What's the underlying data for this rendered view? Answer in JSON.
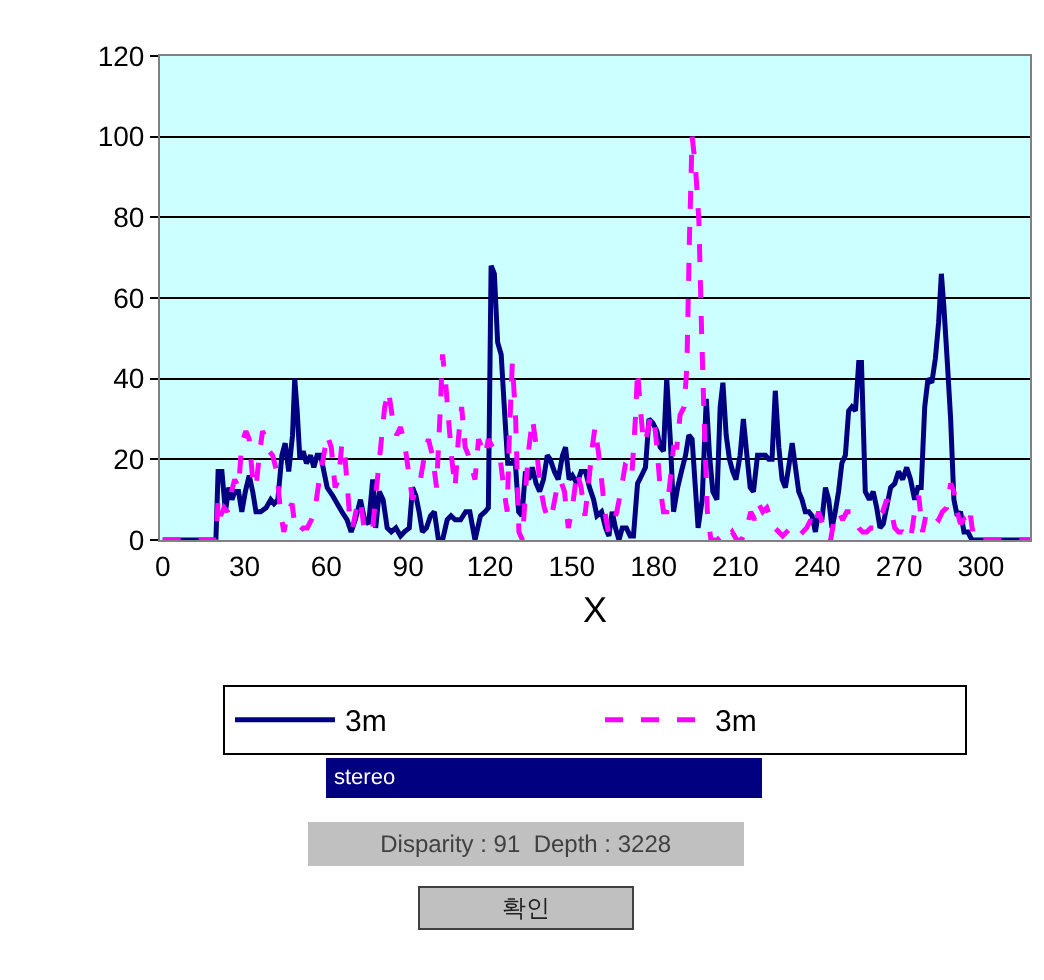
{
  "chart_data": {
    "type": "line",
    "xlabel": "X",
    "xlim": [
      -1,
      318
    ],
    "xticks": [
      0,
      30,
      60,
      90,
      120,
      150,
      180,
      210,
      240,
      270,
      300
    ],
    "ylim": [
      0,
      120
    ],
    "yticks": [
      0,
      20,
      40,
      60,
      80,
      100,
      120
    ],
    "grid": "y",
    "legend": "bottom",
    "marker": "none",
    "annotations": [
      "stereo",
      "Disparity : 91  Depth : 3228",
      "확인"
    ],
    "series": [
      {
        "name": "3m",
        "color": "#000080",
        "line_style": "solid",
        "x": [
          0,
          19.5,
          20.3,
          21.7,
          23,
          24.2,
          25.4,
          26.4,
          27.8,
          29,
          30.3,
          31.7,
          33,
          34.2,
          35.9,
          37.9,
          39.6,
          40.8,
          42.2,
          43.7,
          44.9,
          46.2,
          47.6,
          48.4,
          49.3,
          50.3,
          51.5,
          52.7,
          54.2,
          55.4,
          56.6,
          57.9,
          59.1,
          60.3,
          62.3,
          64,
          65.7,
          67.6,
          69.1,
          70.6,
          72.5,
          74,
          75.5,
          77,
          78.1,
          79.4,
          80.8,
          82.3,
          83.8,
          85.5,
          87.2,
          88.6,
          90.4,
          91.6,
          92.8,
          94,
          95.2,
          96.7,
          98.2,
          99.6,
          101.1,
          102.6,
          104.3,
          105.7,
          107.2,
          109.2,
          111.1,
          112.6,
          114.5,
          116.5,
          118.2,
          119.4,
          120.4,
          121.6,
          122.8,
          124.1,
          125.5,
          126.5,
          128,
          129.2,
          130.5,
          131.7,
          133,
          134.2,
          135.5,
          136.9,
          138.2,
          139.6,
          141,
          142.1,
          143.6,
          145,
          146.6,
          147.7,
          149,
          150.2,
          151.9,
          153.4,
          155,
          156.5,
          158,
          159.2,
          160.9,
          162.4,
          163.6,
          164.8,
          166,
          167.3,
          168.5,
          170,
          171.4,
          172.6,
          174.1,
          175.6,
          177,
          178.3,
          179.7,
          181.2,
          182.4,
          183.6,
          184.8,
          186.1,
          187.3,
          188.8,
          190.2,
          191.7,
          192.9,
          194.1,
          195.3,
          196.3,
          197.8,
          199.3,
          200.5,
          201.7,
          203.2,
          204.4,
          205.4,
          206.6,
          207.8,
          209,
          210.2,
          211.7,
          212.9,
          214.2,
          215.4,
          216.6,
          218.1,
          219.5,
          221,
          222.2,
          223.4,
          224.6,
          225.9,
          227.1,
          228.3,
          229.5,
          230.8,
          232,
          233.2,
          234.4,
          235.6,
          236.9,
          238.1,
          239.3,
          240.5,
          241.7,
          243,
          244.2,
          245.4,
          246.6,
          247.8,
          249,
          250.3,
          251.5,
          252.7,
          254,
          255.2,
          256.2,
          257.6,
          259.1,
          260.5,
          261.8,
          263,
          264.2,
          265.4,
          266.9,
          268.4,
          269.8,
          271.3,
          272.8,
          274.2,
          275.7,
          276.9,
          278.1,
          279.4,
          280.6,
          282,
          283.3,
          284.5,
          285.5,
          286.4,
          287.6,
          288.9,
          290.1,
          291.3,
          292.5,
          293.8,
          295.2,
          296.7,
          318
        ],
        "values": [
          0,
          0,
          17,
          17,
          7,
          13,
          10,
          12,
          12,
          7,
          12,
          16,
          12,
          7,
          7,
          8,
          10,
          9,
          10,
          21,
          24,
          17,
          26,
          40,
          32,
          20,
          22,
          19,
          21,
          18,
          21,
          21,
          17,
          13,
          11,
          9,
          7,
          5,
          2,
          5,
          10,
          5,
          4,
          15,
          3,
          12,
          10,
          3,
          2,
          3,
          1,
          2,
          3,
          13,
          11,
          7,
          2,
          3,
          6,
          7,
          0,
          0,
          5,
          6,
          5,
          5,
          7,
          7,
          0,
          6,
          7,
          8,
          68,
          66,
          49,
          46,
          30,
          19,
          19,
          20,
          7,
          6,
          17,
          15,
          18,
          14,
          12,
          15,
          21,
          20,
          17,
          15,
          21,
          23,
          15,
          16,
          14,
          17,
          17,
          13,
          10,
          6,
          7,
          3,
          1,
          7,
          3,
          0,
          3,
          3,
          1,
          1,
          14,
          16,
          18,
          30,
          29,
          27,
          23,
          22,
          40,
          25,
          7,
          13,
          17,
          21,
          26,
          25,
          13,
          3,
          10,
          35,
          21,
          12,
          10,
          33,
          39,
          26,
          20,
          17,
          15,
          21,
          30,
          21,
          13,
          12,
          21,
          21,
          21,
          20,
          20,
          37,
          23,
          15,
          13,
          18,
          24,
          18,
          12,
          10,
          7,
          7,
          6,
          2,
          7,
          5,
          13,
          10,
          3,
          7,
          12,
          19,
          21,
          32,
          33,
          32,
          44,
          44,
          12,
          10,
          12,
          8,
          3,
          4,
          8,
          13,
          14,
          17,
          15,
          18,
          15,
          10,
          13,
          13,
          33,
          40,
          39,
          45,
          54,
          66,
          58,
          45,
          30,
          10,
          6,
          7,
          2,
          2,
          0,
          0
        ]
      },
      {
        "name": "3m",
        "color": "#ff00ff",
        "line_style": "dashed",
        "x": [
          0,
          19.5,
          20.3,
          21.2,
          22.5,
          23.7,
          25.2,
          26.4,
          27.8,
          29,
          30.5,
          31.7,
          33,
          34.2,
          35.4,
          36.6,
          37.9,
          39.1,
          40.3,
          41.8,
          43.2,
          44.4,
          45.9,
          47.4,
          48.6,
          50.1,
          51.5,
          53,
          54.5,
          55.9,
          57.4,
          58.8,
          60.3,
          61.8,
          63.2,
          64.5,
          65.7,
          66.9,
          68.4,
          69.6,
          71.1,
          72.5,
          74,
          75.5,
          77,
          78.4,
          79.9,
          81.4,
          82.8,
          84.3,
          85.8,
          87.2,
          88.7,
          90.1,
          91.6,
          93.1,
          94.5,
          96,
          97.4,
          98.9,
          100.4,
          101.6,
          102.6,
          103.6,
          104.8,
          106,
          107.2,
          108.4,
          109.6,
          110.9,
          112.1,
          113.3,
          114.5,
          115.8,
          117,
          118.2,
          119.4,
          120.9,
          122.4,
          123.8,
          125,
          126.3,
          127.2,
          128.2,
          129.4,
          130.6,
          131.9,
          133.1,
          134.3,
          135.6,
          137,
          138.5,
          139.9,
          141.4,
          142.9,
          144.3,
          145.8,
          147.3,
          148.7,
          150.2,
          151.9,
          153.4,
          154.8,
          156,
          157.5,
          158.5,
          159.7,
          160.9,
          162.1,
          163.4,
          164.6,
          166.5,
          168.2,
          169.7,
          170.9,
          172.1,
          173.4,
          174.1,
          175.1,
          176.3,
          177.5,
          178.7,
          180,
          181.2,
          182.4,
          183.6,
          184.8,
          186.1,
          187.3,
          188.5,
          189.7,
          191.2,
          192.2,
          193.1,
          194.1,
          195.3,
          196.6,
          197.5,
          198.5,
          199.7,
          201,
          203.2,
          204.9,
          206.8,
          208.8,
          210.5,
          212.2,
          214.2,
          215.6,
          217.1,
          218.5,
          220,
          221.5,
          223,
          224.4,
          225.9,
          227.3,
          228.8,
          230.3,
          231.7,
          233.2,
          234.7,
          236.1,
          237.6,
          239.1,
          240.5,
          242,
          243.5,
          244.9,
          246.4,
          247.9,
          249.3,
          250.8,
          252.2,
          253.7,
          255.2,
          256.6,
          258.1,
          259.6,
          261,
          262.5,
          264,
          265.4,
          266.9,
          268.4,
          269.8,
          271.3,
          272.8,
          274.2,
          275.7,
          277.2,
          278.6,
          280.1,
          281.5,
          283,
          284.5,
          285.9,
          287.4,
          288.9,
          290.1,
          291.3,
          292.5,
          293.8,
          295,
          296.2,
          297.4,
          318
        ],
        "values": [
          0,
          0,
          10,
          6,
          8,
          7,
          12,
          15,
          13,
          24,
          27,
          25,
          15,
          13,
          21,
          27,
          25,
          22,
          21,
          17,
          7,
          2,
          7,
          9,
          3,
          2,
          3,
          3,
          5,
          8,
          15,
          20,
          26,
          23,
          13,
          15,
          24,
          20,
          7,
          3,
          8,
          10,
          2,
          2,
          3,
          13,
          23,
          33,
          37,
          30,
          26,
          28,
          24,
          17,
          10,
          13,
          15,
          21,
          25,
          21,
          13,
          30,
          46,
          40,
          30,
          20,
          13,
          25,
          33,
          23,
          21,
          18,
          15,
          25,
          23,
          21,
          25,
          23,
          21,
          20,
          13,
          7,
          28,
          44,
          30,
          2,
          0,
          13,
          23,
          30,
          23,
          13,
          8,
          5,
          7,
          12,
          15,
          12,
          3,
          8,
          17,
          13,
          6,
          13,
          23,
          28,
          22,
          15,
          7,
          2,
          3,
          7,
          13,
          19,
          20,
          17,
          31,
          42,
          33,
          24,
          26,
          30,
          31,
          23,
          13,
          7,
          7,
          15,
          23,
          23,
          31,
          33,
          43,
          74,
          100,
          93,
          79,
          54,
          30,
          7,
          0,
          0,
          1,
          0,
          2,
          0,
          0,
          3,
          7,
          5,
          9,
          7,
          8,
          5,
          3,
          2,
          1,
          2,
          3,
          2,
          3,
          2,
          3,
          5,
          3,
          7,
          4,
          3,
          0,
          6,
          7,
          5,
          7,
          7,
          5,
          3,
          2,
          2,
          3,
          3,
          6,
          7,
          10,
          8,
          3,
          2,
          2,
          1,
          0,
          7,
          11,
          2,
          7,
          7,
          6,
          5,
          7,
          8,
          14,
          12,
          7,
          4,
          5,
          3,
          6,
          0,
          0
        ]
      }
    ]
  }
}
